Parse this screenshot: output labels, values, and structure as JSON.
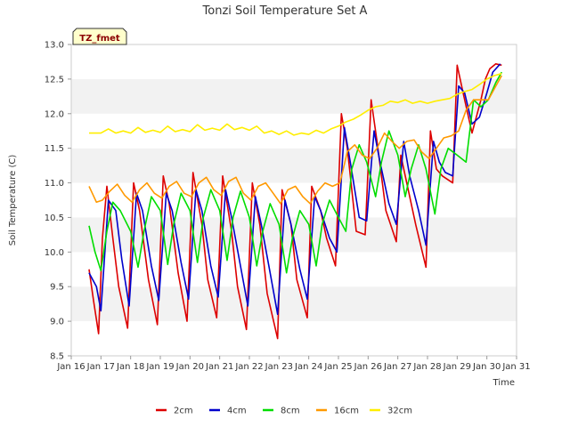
{
  "chart_data": {
    "type": "line",
    "title": "Tonzi Soil Temperature Set A",
    "xlabel": "Time",
    "ylabel": "Soil Temperature (C)",
    "badge": "TZ_fmet",
    "xlim": [
      16,
      31
    ],
    "ylim": [
      8.5,
      13.0
    ],
    "xticks": [
      16,
      17,
      18,
      19,
      20,
      21,
      22,
      23,
      24,
      25,
      26,
      27,
      28,
      29,
      30,
      31
    ],
    "xtick_labels": [
      "Jan 16",
      "Jan 17",
      "Jan 18",
      "Jan 19",
      "Jan 20",
      "Jan 21",
      "Jan 22",
      "Jan 23",
      "Jan 24",
      "Jan 25",
      "Jan 26",
      "Jan 27",
      "Jan 28",
      "Jan 29",
      "Jan 30",
      "Jan 31"
    ],
    "yticks": [
      8.5,
      9.0,
      9.5,
      10.0,
      10.5,
      11.0,
      11.5,
      12.0,
      12.5,
      13.0
    ],
    "ytick_labels": [
      "8.5",
      "9.0",
      "9.5",
      "10.0",
      "10.5",
      "11.0",
      "11.5",
      "12.0",
      "12.5",
      "13.0"
    ],
    "legend_position": "bottom",
    "series": [
      {
        "name": "2cm",
        "color": "#dd0000",
        "x": [
          16.6,
          16.75,
          16.92,
          17.05,
          17.2,
          17.4,
          17.6,
          17.9,
          18.1,
          18.3,
          18.6,
          18.9,
          19.1,
          19.3,
          19.6,
          19.9,
          20.1,
          20.4,
          20.6,
          20.9,
          21.1,
          21.4,
          21.6,
          21.9,
          22.1,
          22.35,
          22.6,
          22.95,
          23.1,
          23.4,
          23.6,
          23.95,
          24.1,
          24.4,
          24.6,
          24.9,
          25.1,
          25.3,
          25.6,
          25.9,
          26.1,
          26.3,
          26.6,
          26.95,
          27.1,
          27.3,
          27.6,
          27.95,
          28.1,
          28.3,
          28.5,
          28.85,
          29.0,
          29.2,
          29.5,
          29.8,
          29.95,
          30.1,
          30.3,
          30.5
        ],
        "y": [
          9.75,
          9.3,
          8.82,
          10.2,
          10.95,
          10.2,
          9.5,
          8.9,
          11.0,
          10.6,
          9.6,
          8.95,
          11.1,
          10.7,
          9.7,
          9.0,
          11.15,
          10.4,
          9.6,
          9.05,
          11.1,
          10.3,
          9.5,
          8.88,
          11.0,
          10.4,
          9.4,
          8.75,
          10.9,
          10.4,
          9.6,
          9.05,
          10.95,
          10.6,
          10.2,
          9.8,
          12.0,
          11.5,
          10.3,
          10.25,
          12.2,
          11.6,
          10.6,
          10.15,
          11.4,
          11.0,
          10.4,
          9.78,
          11.75,
          11.2,
          11.1,
          11.0,
          12.7,
          12.3,
          11.72,
          12.2,
          12.5,
          12.65,
          12.72,
          12.7
        ]
      },
      {
        "name": "4cm",
        "color": "#0000cc",
        "x": [
          16.6,
          16.85,
          17.0,
          17.25,
          17.5,
          17.7,
          17.95,
          18.2,
          18.4,
          18.7,
          18.95,
          19.2,
          19.4,
          19.7,
          19.95,
          20.2,
          20.4,
          20.7,
          20.95,
          21.2,
          21.4,
          21.7,
          21.95,
          22.2,
          22.4,
          22.7,
          22.95,
          23.2,
          23.4,
          23.7,
          23.95,
          24.2,
          24.4,
          24.7,
          24.95,
          25.2,
          25.4,
          25.7,
          25.95,
          26.2,
          26.4,
          26.7,
          26.95,
          27.2,
          27.4,
          27.7,
          27.95,
          28.2,
          28.4,
          28.6,
          28.85,
          29.05,
          29.25,
          29.5,
          29.75,
          30.0,
          30.2,
          30.45
        ],
        "y": [
          9.7,
          9.5,
          9.15,
          10.75,
          10.6,
          9.9,
          9.22,
          10.85,
          10.6,
          9.8,
          9.3,
          10.85,
          10.6,
          9.85,
          9.32,
          10.9,
          10.6,
          9.8,
          9.35,
          10.9,
          10.5,
          9.8,
          9.22,
          10.8,
          10.4,
          9.7,
          9.1,
          10.75,
          10.4,
          9.75,
          9.32,
          10.8,
          10.6,
          10.2,
          10.0,
          11.8,
          11.3,
          10.5,
          10.45,
          11.75,
          11.3,
          10.7,
          10.4,
          11.6,
          11.1,
          10.6,
          10.1,
          11.6,
          11.3,
          11.15,
          11.1,
          12.4,
          12.3,
          11.85,
          11.95,
          12.3,
          12.6,
          12.72
        ]
      },
      {
        "name": "8cm",
        "color": "#00dd00",
        "x": [
          16.6,
          16.8,
          17.0,
          17.2,
          17.4,
          17.65,
          18.0,
          18.25,
          18.45,
          18.7,
          19.0,
          19.25,
          19.45,
          19.7,
          20.0,
          20.25,
          20.45,
          20.7,
          21.0,
          21.25,
          21.45,
          21.7,
          22.0,
          22.25,
          22.45,
          22.7,
          23.0,
          23.25,
          23.45,
          23.7,
          24.0,
          24.25,
          24.45,
          24.7,
          25.0,
          25.25,
          25.45,
          25.7,
          25.95,
          26.25,
          26.45,
          26.7,
          27.0,
          27.25,
          27.45,
          27.7,
          27.95,
          28.25,
          28.45,
          28.7,
          29.0,
          29.3,
          29.55,
          29.8,
          30.05,
          30.3,
          30.5
        ],
        "y": [
          10.38,
          10.0,
          9.73,
          10.3,
          10.72,
          10.6,
          10.3,
          9.78,
          10.3,
          10.8,
          10.6,
          9.82,
          10.4,
          10.85,
          10.6,
          9.85,
          10.5,
          10.9,
          10.6,
          9.88,
          10.5,
          10.88,
          10.5,
          9.8,
          10.3,
          10.7,
          10.4,
          9.7,
          10.2,
          10.6,
          10.4,
          9.8,
          10.4,
          10.75,
          10.5,
          10.3,
          11.2,
          11.55,
          11.3,
          10.8,
          11.3,
          11.75,
          11.4,
          10.8,
          11.2,
          11.55,
          11.2,
          10.55,
          11.2,
          11.5,
          11.4,
          11.3,
          12.2,
          12.1,
          12.2,
          12.45,
          12.6
        ]
      },
      {
        "name": "16cm",
        "color": "#ff9900",
        "x": [
          16.6,
          16.85,
          17.05,
          17.3,
          17.55,
          17.8,
          18.05,
          18.3,
          18.55,
          18.8,
          19.05,
          19.3,
          19.55,
          19.8,
          20.05,
          20.3,
          20.55,
          20.8,
          21.05,
          21.3,
          21.55,
          21.8,
          22.05,
          22.3,
          22.55,
          22.8,
          23.05,
          23.3,
          23.55,
          23.8,
          24.05,
          24.3,
          24.55,
          24.8,
          25.05,
          25.3,
          25.55,
          25.8,
          26.05,
          26.3,
          26.55,
          26.8,
          27.05,
          27.3,
          27.55,
          27.8,
          28.05,
          28.3,
          28.55,
          28.8,
          29.05,
          29.3,
          29.55,
          29.8,
          30.05,
          30.3,
          30.5
        ],
        "y": [
          10.95,
          10.72,
          10.75,
          10.88,
          10.98,
          10.82,
          10.72,
          10.9,
          11.0,
          10.85,
          10.78,
          10.95,
          11.02,
          10.85,
          10.8,
          11.0,
          11.08,
          10.9,
          10.82,
          11.02,
          11.08,
          10.85,
          10.75,
          10.95,
          11.0,
          10.85,
          10.7,
          10.9,
          10.95,
          10.8,
          10.7,
          10.88,
          11.0,
          10.95,
          11.0,
          11.45,
          11.55,
          11.4,
          11.35,
          11.5,
          11.72,
          11.6,
          11.5,
          11.6,
          11.62,
          11.45,
          11.35,
          11.5,
          11.65,
          11.68,
          11.75,
          12.05,
          12.2,
          12.2,
          12.2,
          12.4,
          12.55
        ]
      },
      {
        "name": "32cm",
        "color": "#ffee00",
        "x": [
          16.6,
          17.0,
          17.25,
          17.5,
          17.75,
          18.0,
          18.25,
          18.5,
          18.75,
          19.0,
          19.25,
          19.5,
          19.75,
          20.0,
          20.25,
          20.5,
          20.75,
          21.0,
          21.25,
          21.5,
          21.75,
          22.0,
          22.25,
          22.5,
          22.75,
          23.0,
          23.25,
          23.5,
          23.75,
          24.0,
          24.25,
          24.5,
          24.75,
          25.0,
          25.25,
          25.5,
          25.75,
          26.0,
          26.25,
          26.5,
          26.75,
          27.0,
          27.25,
          27.5,
          27.75,
          28.0,
          28.25,
          28.5,
          28.75,
          29.0,
          29.25,
          29.5,
          29.75,
          30.0,
          30.25,
          30.5
        ],
        "y": [
          11.72,
          11.72,
          11.78,
          11.72,
          11.75,
          11.72,
          11.8,
          11.73,
          11.76,
          11.73,
          11.82,
          11.74,
          11.77,
          11.74,
          11.84,
          11.76,
          11.79,
          11.76,
          11.85,
          11.77,
          11.8,
          11.76,
          11.82,
          11.72,
          11.75,
          11.7,
          11.75,
          11.69,
          11.72,
          11.7,
          11.76,
          11.72,
          11.78,
          11.82,
          11.88,
          11.92,
          11.98,
          12.05,
          12.1,
          12.12,
          12.18,
          12.16,
          12.2,
          12.15,
          12.18,
          12.15,
          12.18,
          12.2,
          12.22,
          12.28,
          12.32,
          12.35,
          12.42,
          12.5,
          12.55,
          12.58
        ]
      }
    ]
  }
}
